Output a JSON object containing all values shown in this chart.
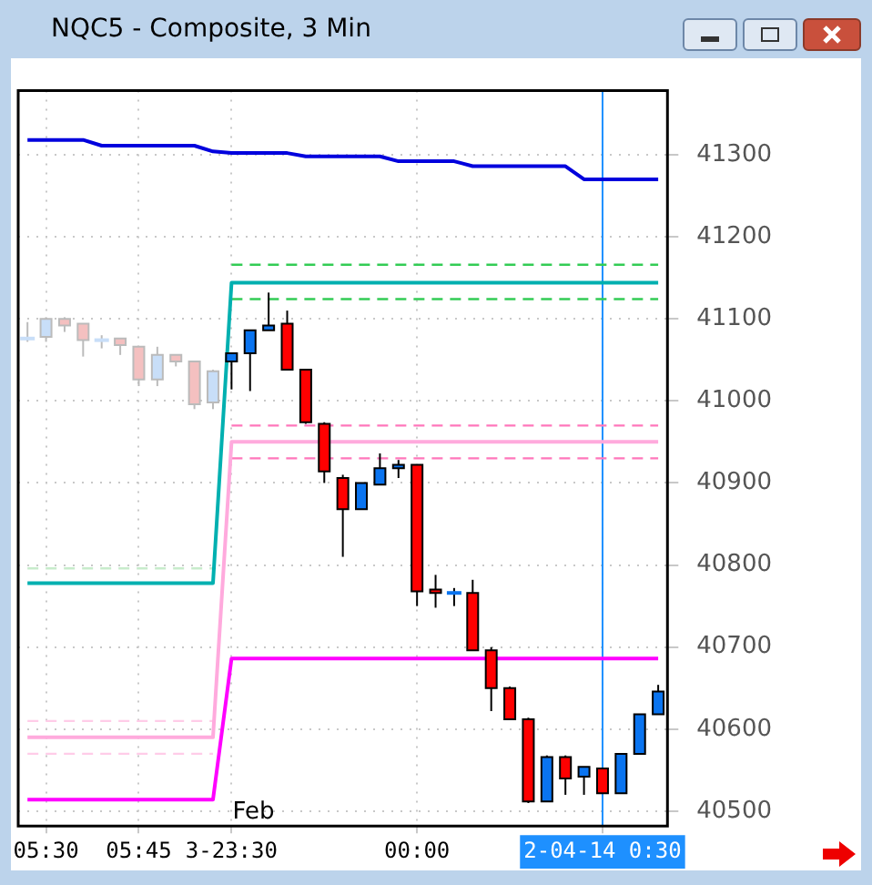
{
  "chart_data": {
    "type": "candlestick",
    "title": "NQC5 - Composite, 3 Min",
    "categories": [
      null,
      "05:30",
      null,
      null,
      null,
      null,
      "05:45",
      null,
      null,
      null,
      null,
      "3-23:30",
      null,
      null,
      null,
      null,
      null,
      null,
      null,
      null,
      null,
      "00:00",
      null,
      null,
      null,
      null,
      null,
      null,
      null,
      null,
      null,
      "2-04-14 0:30",
      null,
      null,
      null
    ],
    "ohlc": [
      [
        41076,
        41096,
        41072,
        41076
      ],
      [
        41078,
        41102,
        41072,
        41100
      ],
      [
        41100,
        41102,
        41084,
        41092
      ],
      [
        41094,
        41094,
        41054,
        41074
      ],
      [
        41074,
        41080,
        41064,
        41074
      ],
      [
        41076,
        41076,
        41056,
        41068
      ],
      [
        41066,
        41066,
        41018,
        41026
      ],
      [
        41026,
        41066,
        41018,
        41056
      ],
      [
        41056,
        41056,
        41042,
        41048
      ],
      [
        41048,
        41048,
        40990,
        40996
      ],
      [
        40998,
        41038,
        40990,
        41036
      ],
      [
        41048,
        41058,
        41014,
        41058
      ],
      [
        41058,
        41086,
        41012,
        41086
      ],
      [
        41086,
        41132,
        41086,
        41092
      ],
      [
        41094,
        41110,
        41038,
        41038
      ],
      [
        41038,
        41038,
        40972,
        40974
      ],
      [
        40972,
        40974,
        40900,
        40914
      ],
      [
        40906,
        40910,
        40810,
        40868
      ],
      [
        40868,
        40900,
        40868,
        40900
      ],
      [
        40898,
        40936,
        40898,
        40918
      ],
      [
        40918,
        40928,
        40906,
        40922
      ],
      [
        40922,
        40922,
        40750,
        40768
      ],
      [
        40770,
        40788,
        40748,
        40766
      ],
      [
        40766,
        40772,
        40750,
        40766
      ],
      [
        40766,
        40782,
        40696,
        40696
      ],
      [
        40696,
        40700,
        40622,
        40650
      ],
      [
        40650,
        40652,
        40612,
        40612
      ],
      [
        40612,
        40614,
        40510,
        40512
      ],
      [
        40512,
        40568,
        40512,
        40566
      ],
      [
        40566,
        40568,
        40520,
        40540
      ],
      [
        40542,
        40554,
        40520,
        40554
      ],
      [
        40552,
        40552,
        40522,
        40522
      ],
      [
        40522,
        40570,
        40522,
        40570
      ],
      [
        40570,
        40618,
        40570,
        40618
      ],
      [
        40618,
        40654,
        40618,
        40646
      ]
    ],
    "colors": [
      "#c8def8",
      "#c8def8",
      "#f4c0c0",
      "#f4c0c0",
      "#c8def8",
      "#f4c0c0",
      "#f4c0c0",
      "#c8def8",
      "#f4c0c0",
      "#f4c0c0",
      "#c8def8",
      "#0a74f0",
      "#0a74f0",
      "#0a74f0",
      "#ff0000",
      "#ff0000",
      "#ff0000",
      "#ff0000",
      "#0a74f0",
      "#0a74f0",
      "#0a74f0",
      "#ff0000",
      "#ff0000",
      "#0a74f0",
      "#ff0000",
      "#ff0000",
      "#ff0000",
      "#ff0000",
      "#0a74f0",
      "#ff0000",
      "#0a74f0",
      "#ff0000",
      "#0a74f0",
      "#0a74f0",
      "#0a74f0"
    ],
    "series": [
      {
        "type": "line",
        "color": "#0000dd",
        "line_style": "solid",
        "values": [
          41318,
          41318,
          41318,
          41318,
          41311,
          41311,
          41311,
          41311,
          41311,
          41311,
          41304,
          41302,
          41302,
          41302,
          41302,
          41298,
          41298,
          41298,
          41298,
          41298,
          41292,
          41292,
          41292,
          41292,
          41286,
          41286,
          41286,
          41286,
          41286,
          41286,
          41270,
          41270,
          41270,
          41270,
          41270
        ]
      },
      {
        "type": "line",
        "color": "#00b0b0",
        "line_style": "solid",
        "values": [
          40778,
          40778,
          40778,
          40778,
          40778,
          40778,
          40778,
          40778,
          40778,
          40778,
          40778,
          41144,
          41144,
          41144,
          41144,
          41144,
          41144,
          41144,
          41144,
          41144,
          41144,
          41144,
          41144,
          41144,
          41144,
          41144,
          41144,
          41144,
          41144,
          41144,
          41144,
          41144,
          41144,
          41144,
          41144
        ]
      },
      {
        "type": "line",
        "color": "#ffaadd",
        "line_style": "solid",
        "values": [
          40590,
          40590,
          40590,
          40590,
          40590,
          40590,
          40590,
          40590,
          40590,
          40590,
          40590,
          40950,
          40950,
          40950,
          40950,
          40950,
          40950,
          40950,
          40950,
          40950,
          40950,
          40950,
          40950,
          40950,
          40950,
          40950,
          40950,
          40950,
          40950,
          40950,
          40950,
          40950,
          40950,
          40950,
          40950
        ]
      },
      {
        "type": "line",
        "color": "#ff00ff",
        "line_style": "solid",
        "values": [
          40514,
          40514,
          40514,
          40514,
          40514,
          40514,
          40514,
          40514,
          40514,
          40514,
          40514,
          40686,
          40686,
          40686,
          40686,
          40686,
          40686,
          40686,
          40686,
          40686,
          40686,
          40686,
          40686,
          40686,
          40686,
          40686,
          40686,
          40686,
          40686,
          40686,
          40686,
          40686,
          40686,
          40686,
          40686
        ]
      },
      {
        "type": "line",
        "color": "#33cc55",
        "line_style": "dashed",
        "values": [
          null,
          null,
          null,
          null,
          null,
          null,
          null,
          null,
          null,
          null,
          null,
          41166,
          41166,
          41166,
          41166,
          41166,
          41166,
          41166,
          41166,
          41166,
          41166,
          41166,
          41166,
          41166,
          41166,
          41166,
          41166,
          41166,
          41166,
          41166,
          41166,
          41166,
          41166,
          41166,
          41166
        ]
      },
      {
        "type": "line",
        "color": "#33cc55",
        "line_style": "dashed",
        "values": [
          null,
          null,
          null,
          null,
          null,
          null,
          null,
          null,
          null,
          null,
          null,
          41124,
          41124,
          41124,
          41124,
          41124,
          41124,
          41124,
          41124,
          41124,
          41124,
          41124,
          41124,
          41124,
          41124,
          41124,
          41124,
          41124,
          41124,
          41124,
          41124,
          41124,
          41124,
          41124,
          41124
        ]
      },
      {
        "type": "line",
        "color": "#ff77bb",
        "line_style": "dashed",
        "values": [
          null,
          null,
          null,
          null,
          null,
          null,
          null,
          null,
          null,
          null,
          null,
          40970,
          40970,
          40970,
          40970,
          40970,
          40970,
          40970,
          40970,
          40970,
          40970,
          40970,
          40970,
          40970,
          40970,
          40970,
          40970,
          40970,
          40970,
          40970,
          40970,
          40970,
          40970,
          40970,
          40970
        ]
      },
      {
        "type": "line",
        "color": "#ff77bb",
        "line_style": "dashed",
        "values": [
          null,
          null,
          null,
          null,
          null,
          null,
          null,
          null,
          null,
          null,
          null,
          40930,
          40930,
          40930,
          40930,
          40930,
          40930,
          40930,
          40930,
          40930,
          40930,
          40930,
          40930,
          40930,
          40930,
          40930,
          40930,
          40930,
          40930,
          40930,
          40930,
          40930,
          40930,
          40930,
          40930
        ]
      },
      {
        "type": "line",
        "color": "#ffcce8",
        "line_style": "dashed",
        "values": [
          40610,
          40610,
          40610,
          40610,
          40610,
          40610,
          40610,
          40610,
          40610,
          40610,
          40610,
          null,
          null,
          null,
          null,
          null,
          null,
          null,
          null,
          null,
          null,
          null,
          null,
          null,
          null,
          null,
          null,
          null,
          null,
          null,
          null,
          null,
          null,
          null,
          null
        ]
      },
      {
        "type": "line",
        "color": "#ffcce8",
        "line_style": "dashed",
        "values": [
          40570,
          40570,
          40570,
          40570,
          40570,
          40570,
          40570,
          40570,
          40570,
          40570,
          40570,
          null,
          null,
          null,
          null,
          null,
          null,
          null,
          null,
          null,
          null,
          null,
          null,
          null,
          null,
          null,
          null,
          null,
          null,
          null,
          null,
          null,
          null,
          null,
          null
        ]
      },
      {
        "type": "line",
        "color": "#c8eccc",
        "line_style": "dashed",
        "values": [
          40796,
          40796,
          40796,
          40796,
          40796,
          40796,
          40796,
          40796,
          40796,
          40796,
          40796,
          null,
          null,
          null,
          null,
          null,
          null,
          null,
          null,
          null,
          null,
          null,
          null,
          null,
          null,
          null,
          null,
          null,
          null,
          null,
          null,
          null,
          null,
          null,
          null
        ]
      }
    ],
    "ylim": [
      40482,
      41378
    ],
    "yticks": [
      40500,
      40600,
      40700,
      40800,
      40900,
      41000,
      41100,
      41200,
      41300
    ],
    "ref_lines": [
      {
        "axis": "x",
        "value": "2-04-14 0:30",
        "color": "#1e90ff"
      }
    ],
    "annotations": [
      "Feb"
    ],
    "grid": true,
    "legend": false,
    "marker": "none"
  }
}
